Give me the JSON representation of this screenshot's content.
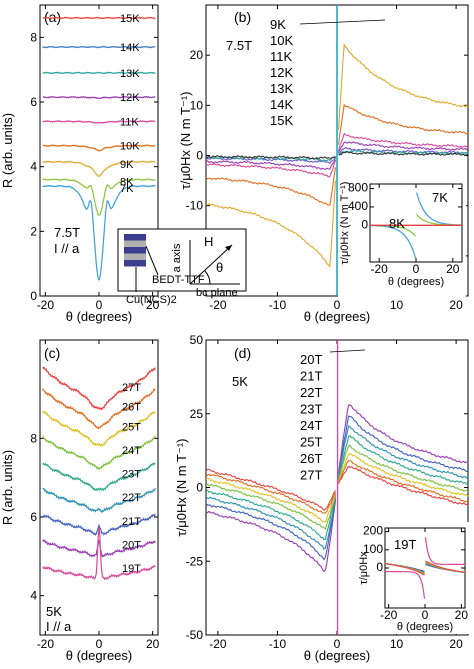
{
  "chart_data": [
    {
      "panel": "(a)",
      "type": "line",
      "xlabel": "θ (degrees)",
      "ylabel": "R (arb. units)",
      "xlim": [
        -22,
        22
      ],
      "ylim": [
        0,
        9
      ],
      "xticks": [
        -20,
        0,
        20
      ],
      "yticks": [
        0,
        2,
        4,
        6,
        8
      ],
      "annotations": [
        "7.5T",
        "I // a"
      ],
      "series": [
        {
          "name": "15K",
          "offset": 8.6,
          "dip": 0,
          "color": "#e8413c"
        },
        {
          "name": "14K",
          "offset": 7.7,
          "dip": 0,
          "color": "#3f7fbf"
        },
        {
          "name": "13K",
          "offset": 6.9,
          "dip": 0,
          "color": "#2aa7a1"
        },
        {
          "name": "12K",
          "offset": 6.15,
          "dip": 0.03,
          "color": "#9b3bb5"
        },
        {
          "name": "11K",
          "offset": 5.4,
          "dip": 0.05,
          "color": "#d9479a"
        },
        {
          "name": "10K",
          "offset": 4.65,
          "dip": 0.15,
          "color": "#e06d20"
        },
        {
          "name": "9K",
          "offset": 4.15,
          "dip": 0.45,
          "color": "#e0a82a"
        },
        {
          "name": "8K",
          "offset": 3.6,
          "dip": 1.1,
          "color": "#8cc63f"
        },
        {
          "name": "7K",
          "offset": 3.4,
          "dip": 2.9,
          "color": "#3aa0d8"
        }
      ]
    },
    {
      "panel": "(b)",
      "type": "line",
      "xlabel": "θ (degrees)",
      "ylabel": "τ/μ0Hx (N m T⁻¹)",
      "xlim": [
        -22,
        22
      ],
      "ylim": [
        -28,
        30
      ],
      "xticks": [
        -20,
        -10,
        0,
        10,
        20
      ],
      "yticks": [
        -20,
        -10,
        0,
        10,
        20
      ],
      "annotations": [
        "7.5T"
      ],
      "series": [
        {
          "name": "9K",
          "amp": 24,
          "color": "#e0a82a"
        },
        {
          "name": "10K",
          "amp": 11,
          "color": "#e06d20"
        },
        {
          "name": "11K",
          "amp": 4.5,
          "color": "#d9479a"
        },
        {
          "name": "12K",
          "amp": 3,
          "color": "#9b3bb5"
        },
        {
          "name": "13K",
          "amp": 1.5,
          "color": "#6a5acd"
        },
        {
          "name": "14K",
          "amp": 1,
          "color": "#2aa7a1"
        },
        {
          "name": "15K",
          "amp": 0.6,
          "color": "#333333"
        }
      ],
      "inset": {
        "xlabel": "θ (degrees)",
        "ylabel": "τ/μ0Hx (N m T⁻¹)",
        "xlim": [
          -25,
          25
        ],
        "ylim": [
          -800,
          900
        ],
        "xticks": [
          -20,
          0,
          20
        ],
        "yticks": [
          0,
          400,
          800
        ],
        "series": [
          {
            "name": "7K",
            "amp": 760,
            "color": "#3aa0d8"
          },
          {
            "name": "8K",
            "amp": 250,
            "color": "#8cc63f"
          }
        ]
      }
    },
    {
      "panel": "(c)",
      "type": "line",
      "xlabel": "θ (degrees)",
      "ylabel": "R (arb. units)",
      "xlim": [
        -22,
        22
      ],
      "ylim": [
        3,
        10.5
      ],
      "xticks": [
        -20,
        0,
        20
      ],
      "yticks": [
        4,
        6,
        8
      ],
      "annotations": [
        "5K",
        "I // a"
      ],
      "series": [
        {
          "name": "27T",
          "offset": 9.1,
          "spike": 0,
          "color": "#e8413c"
        },
        {
          "name": "26T",
          "offset": 8.6,
          "spike": 0,
          "color": "#e06d20"
        },
        {
          "name": "25T",
          "offset": 8.1,
          "spike": 0,
          "color": "#e0c020"
        },
        {
          "name": "24T",
          "offset": 7.5,
          "spike": 0,
          "color": "#7cc03f"
        },
        {
          "name": "23T",
          "offset": 6.9,
          "spike": 0,
          "color": "#2aa78a"
        },
        {
          "name": "22T",
          "offset": 6.3,
          "spike": 0.1,
          "color": "#2a8fb5"
        },
        {
          "name": "21T",
          "offset": 5.7,
          "spike": 0.2,
          "color": "#3f5fbf"
        },
        {
          "name": "20T",
          "offset": 5.1,
          "spike": 0.4,
          "color": "#9b3bb5"
        },
        {
          "name": "19T",
          "offset": 4.5,
          "spike": 1.3,
          "color": "#d9479a"
        }
      ]
    },
    {
      "panel": "(d)",
      "type": "line",
      "xlabel": "θ (degrees)",
      "ylabel": "τ/μ0Hx (N m T⁻¹)",
      "xlim": [
        -22,
        22
      ],
      "ylim": [
        -50,
        50
      ],
      "xticks": [
        -20,
        -10,
        0,
        10,
        20
      ],
      "yticks": [
        -50,
        -25,
        0,
        25,
        50
      ],
      "annotations": [
        "5K"
      ],
      "series": [
        {
          "name": "20T",
          "amp": 35,
          "color": "#9b3bb5"
        },
        {
          "name": "21T",
          "amp": 30,
          "color": "#3f5fbf"
        },
        {
          "name": "22T",
          "amp": 26,
          "color": "#2a8fb5"
        },
        {
          "name": "23T",
          "amp": 22,
          "color": "#2aa78a"
        },
        {
          "name": "24T",
          "amp": 18,
          "color": "#7cc03f"
        },
        {
          "name": "25T",
          "amp": 15,
          "color": "#e0c020"
        },
        {
          "name": "26T",
          "amp": 12,
          "color": "#e06d20"
        },
        {
          "name": "27T",
          "amp": 10,
          "color": "#e8413c"
        }
      ],
      "inset": {
        "xlabel": "θ (degrees)",
        "ylabel": "τ/μ0Hx",
        "xlim": [
          -22,
          22
        ],
        "ylim": [
          -220,
          220
        ],
        "xticks": [
          -20,
          0,
          20
        ],
        "yticks": [
          0,
          100,
          200
        ],
        "series": [
          {
            "name": "19T",
            "amp": 180,
            "color": "#d9479a"
          }
        ]
      }
    }
  ],
  "diagram": {
    "labels": [
      "a axis",
      "H",
      "θ",
      "bc plane",
      "BEDT-TTF",
      "Cu(NCS)2"
    ]
  }
}
